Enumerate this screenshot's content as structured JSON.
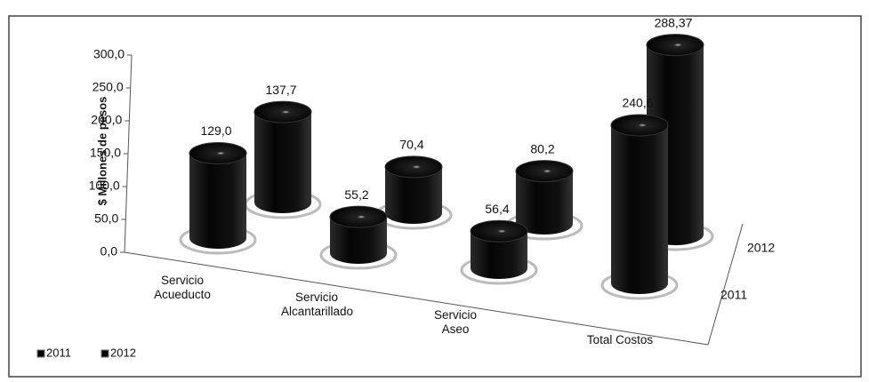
{
  "chart_data": {
    "type": "bar3d",
    "y_label": "$ Millones de pesos",
    "categories": [
      "Servicio Acueducto",
      "Servicio Alcantarillado",
      "Servicio Aseo",
      "Total Costos"
    ],
    "series": [
      {
        "name": "2011",
        "color": "#000000",
        "values": [
          129.0,
          55.2,
          56.4,
          240.6
        ],
        "value_labels": [
          "129,0",
          "55,2",
          "56,4",
          "240,6"
        ]
      },
      {
        "name": "2012",
        "color": "#000000",
        "values": [
          137.7,
          70.4,
          80.2,
          288.37
        ],
        "value_labels": [
          "137,7",
          "70,4",
          "80,2",
          "288,37"
        ]
      }
    ],
    "ylim": [
      0,
      300
    ],
    "yticks": [
      {
        "value": 0,
        "label": "0,0"
      },
      {
        "value": 50,
        "label": "50,0"
      },
      {
        "value": 100,
        "label": "100,0"
      },
      {
        "value": 150,
        "label": "150,0"
      },
      {
        "value": 200,
        "label": "200,0"
      },
      {
        "value": 250,
        "label": "250,0"
      },
      {
        "value": 300,
        "label": "300,0"
      }
    ],
    "legend": "bottom-left"
  }
}
